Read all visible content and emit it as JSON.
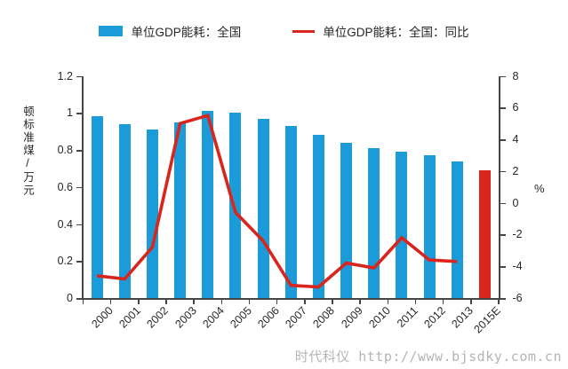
{
  "legend": {
    "bar_label": "单位GDP能耗：全国",
    "line_label": "单位GDP能耗：全国：同比"
  },
  "axes": {
    "left_title": "顿标准煤/万元",
    "right_title": "%",
    "left_ticks": [
      "1.2",
      "1",
      "0.8",
      "0.6",
      "0.4",
      "0.2",
      "0"
    ],
    "right_ticks": [
      "8",
      "6",
      "4",
      "2",
      "0",
      "-2",
      "-4",
      "-6"
    ]
  },
  "watermark": "时代科仪 http://www.bjsdky.com.cn",
  "colors": {
    "bar": "#1b9cd9",
    "bar_highlight": "#d9251d",
    "line": "#d9251d",
    "axis": "#454545",
    "text": "#262626",
    "watermark": "#b4b4b4"
  },
  "chart_data": {
    "type": "bar",
    "categories": [
      "2000",
      "2001",
      "2002",
      "2003",
      "2004",
      "2005",
      "2006",
      "2007",
      "2008",
      "2009",
      "2010",
      "2011",
      "2012",
      "2013",
      "2015E"
    ],
    "series": [
      {
        "name": "单位GDP能耗：全国",
        "type": "bar",
        "axis": "left",
        "values": [
          0.98,
          0.94,
          0.91,
          0.95,
          1.01,
          1.0,
          0.97,
          0.93,
          0.88,
          0.84,
          0.81,
          0.79,
          0.77,
          0.74,
          0.69
        ],
        "highlight_index": 14
      },
      {
        "name": "单位GDP能耗：全国：同比",
        "type": "line",
        "axis": "right",
        "values": [
          -4.6,
          -4.8,
          -2.8,
          5.0,
          5.5,
          -0.6,
          -2.4,
          -5.2,
          -5.3,
          -3.8,
          -4.1,
          -2.2,
          -3.6,
          -3.7,
          null
        ]
      }
    ],
    "left_axis": {
      "min": 0,
      "max": 1.2,
      "step": 0.2,
      "label": "顿标准煤/万元"
    },
    "right_axis": {
      "min": -6,
      "max": 8,
      "step": 2,
      "label": "%"
    },
    "grid": false,
    "legend_position": "top"
  }
}
